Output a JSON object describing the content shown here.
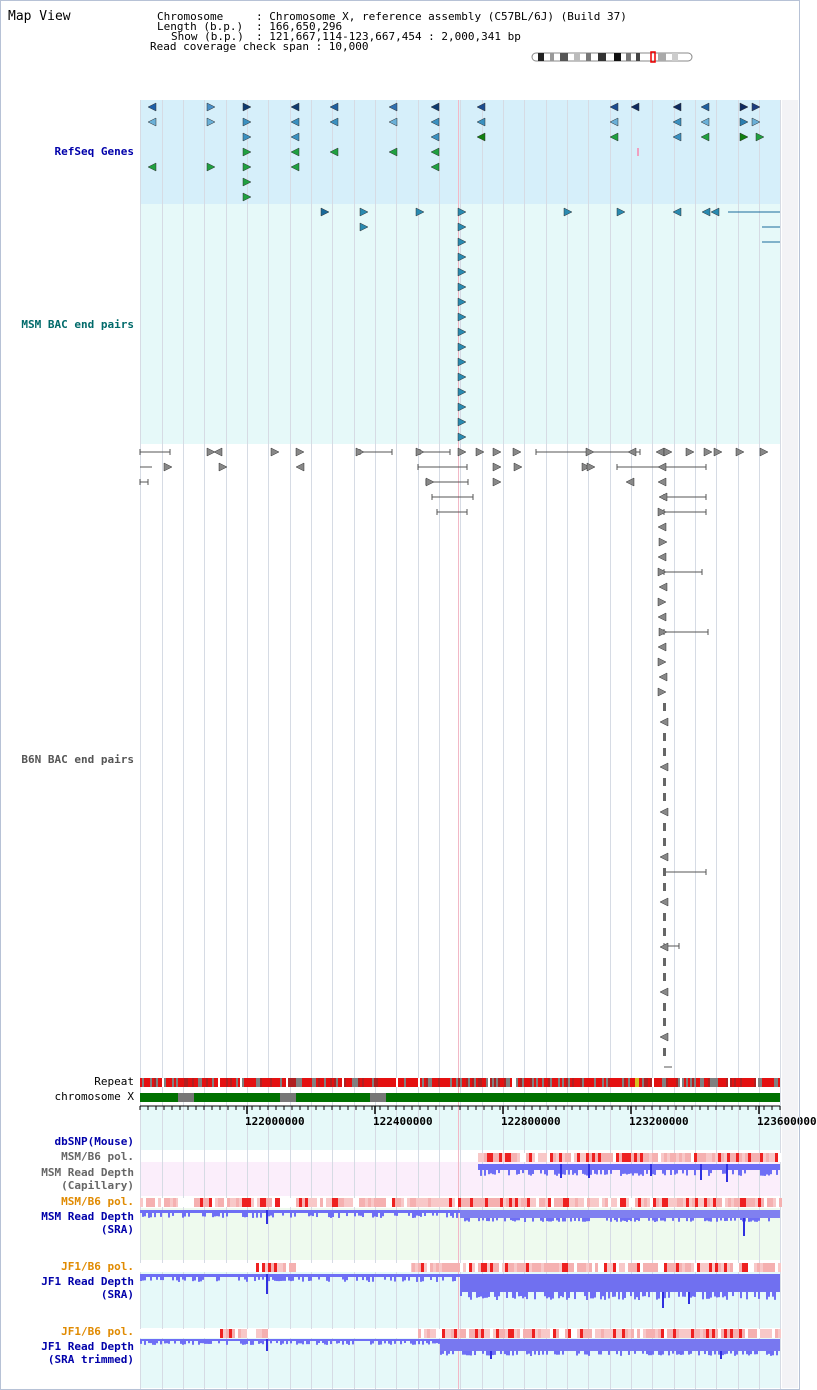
{
  "page": {
    "title": "Map View",
    "info": {
      "chromosome_key": "Chromosome",
      "chromosome_val": ": Chromosome X, reference assembly (C57BL/6J) (Build 37)",
      "length_key": "Length (b.p.)",
      "length_val": ": 166,650,296",
      "show_key": "Show (b.p.)",
      "show_val": ": 121,667,114-123,667,454 : 2,000,341 bp",
      "coverage_line": "Read coverage check span : 10,000"
    }
  },
  "tracks": {
    "refseq": "RefSeq Genes",
    "msm_bac": "MSM BAC end pairs",
    "b6n_bac": "B6N BAC end pairs",
    "repeat": "Repeat",
    "chromosome": "chromosome X",
    "dbsnp": "dbSNP(Mouse)",
    "msm_b6_pol_1": "MSM/B6 pol.",
    "msm_read_depth_cap_1": "MSM Read Depth",
    "msm_read_depth_cap_2": "(Capillary)",
    "msm_b6_pol_2": "MSM/B6 pol.",
    "msm_read_depth_sra_1": "MSM Read Depth",
    "msm_read_depth_sra_2": "(SRA)",
    "jf1_b6_pol_1": "JF1/B6 pol.",
    "jf1_read_depth_sra_1": "JF1 Read Depth",
    "jf1_read_depth_sra_2": "(SRA)",
    "jf1_b6_pol_2": "JF1/B6 pol.",
    "jf1_read_depth_trim_1": "JF1 Read Depth",
    "jf1_read_depth_trim_2": "(SRA trimmed)"
  },
  "axis": {
    "labels": [
      "122000000",
      "122400000",
      "122800000",
      "123200000",
      "123600000"
    ]
  },
  "colors": {
    "refseq_bg": "#d6effa",
    "msm_bac_bg": "#e6f9f9",
    "dbsnp_bg": "#e6f9f9",
    "capillary_bg": "#fbeefb",
    "sra_bg": "#eefaee",
    "chromosome_green": "#007000",
    "repeat_red": "#e41010",
    "depth_blue": "#6e6ef5",
    "pol_pink": "#f5b0b0"
  }
}
